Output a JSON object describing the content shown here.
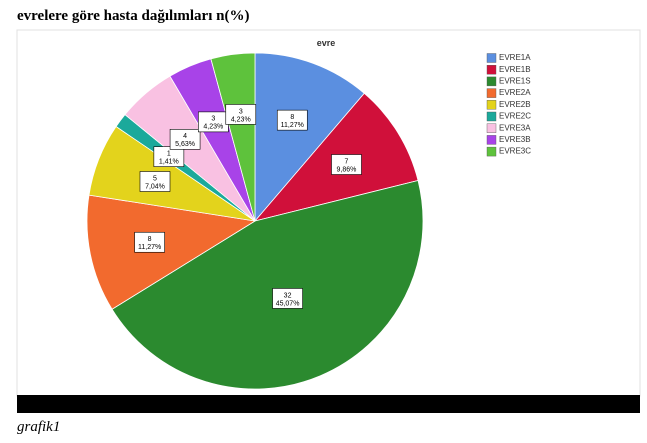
{
  "heading": "evrelere göre hasta dağılımları n(%)",
  "chart_data": {
    "type": "pie",
    "title": "evre",
    "categories": [
      "EVRE1A",
      "EVRE1B",
      "EVRE1S",
      "EVRE2A",
      "EVRE2B",
      "EVRE2C",
      "EVRE3A",
      "EVRE3B",
      "EVRE3C"
    ],
    "values": [
      8,
      7,
      32,
      8,
      5,
      1,
      4,
      3,
      3
    ],
    "percents": [
      11.27,
      9.86,
      45.07,
      11.27,
      7.04,
      1.41,
      5.63,
      4.23,
      4.23
    ],
    "percent_labels": [
      "11,27%",
      "9,86%",
      "45,07%",
      "11,27%",
      "7,04%",
      "1,41%",
      "5,63%",
      "4,23%",
      "4,23%"
    ],
    "colors": [
      "#5b8fe0",
      "#d0103a",
      "#2b8a2f",
      "#f26a2e",
      "#e3d31c",
      "#1ba99b",
      "#f9c1e2",
      "#a843e8",
      "#5ec23c"
    ],
    "legend": "right"
  },
  "caption": "grafik1"
}
